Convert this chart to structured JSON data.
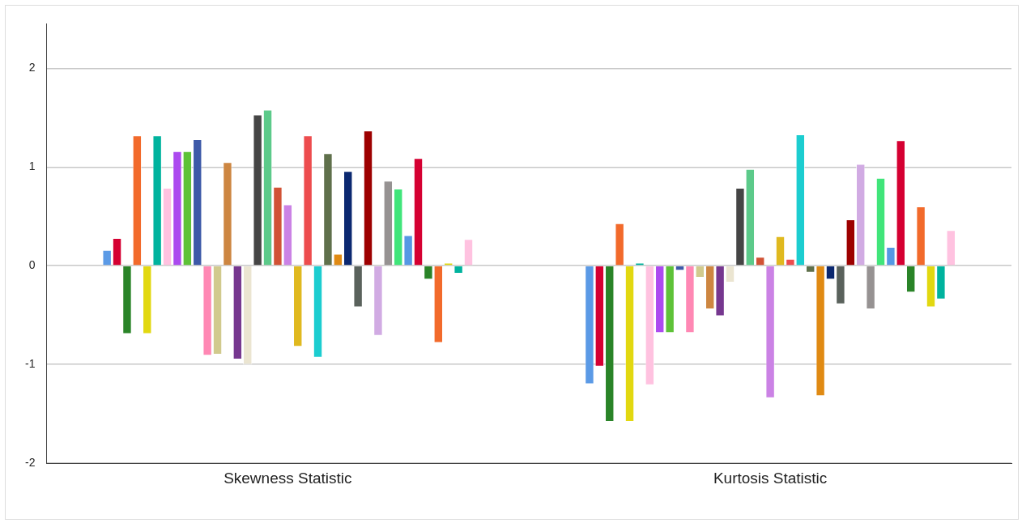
{
  "chart_data": {
    "type": "bar",
    "categories": [
      "Skewness Statistic",
      "Kurtosis Statistic"
    ],
    "ylim": [
      -2,
      2.45
    ],
    "yticks": [
      -2,
      -1,
      0,
      1,
      2
    ],
    "grid": "y",
    "legend": false,
    "series": [
      {
        "color": "#5b9ae6",
        "values": [
          0.16,
          -1.2
        ]
      },
      {
        "color": "#d50032",
        "values": [
          0.28,
          -1.02
        ]
      },
      {
        "color": "#2a8428",
        "values": [
          -0.69,
          -1.58
        ]
      },
      {
        "color": "#f26a2b",
        "values": [
          1.32,
          0.43
        ]
      },
      {
        "color": "#e2d810",
        "values": [
          -0.69,
          -1.58
        ]
      },
      {
        "color": "#00b39e",
        "values": [
          1.32,
          0.03
        ]
      },
      {
        "color": "#ffc2e0",
        "values": [
          0.79,
          -1.21
        ]
      },
      {
        "color": "#ac4aef",
        "values": [
          1.16,
          -0.68
        ]
      },
      {
        "color": "#5ec238",
        "values": [
          1.16,
          -0.68
        ]
      },
      {
        "color": "#3d59a8",
        "values": [
          1.28,
          -0.05
        ]
      },
      {
        "color": "#ff88b4",
        "values": [
          -0.91,
          -0.68
        ]
      },
      {
        "color": "#d1ca8d",
        "values": [
          -0.9,
          -0.12
        ]
      },
      {
        "color": "#cd8641",
        "values": [
          1.05,
          -0.44
        ]
      },
      {
        "color": "#76378f",
        "values": [
          -0.95,
          -0.51
        ]
      },
      {
        "color": "#ebe5d1",
        "values": [
          -1.0,
          -0.17
        ]
      },
      {
        "color": "#454545",
        "values": [
          1.53,
          0.79
        ]
      },
      {
        "color": "#5cca8a",
        "values": [
          1.58,
          0.98
        ]
      },
      {
        "color": "#d15235",
        "values": [
          0.8,
          0.09
        ]
      },
      {
        "color": "#cb82e5",
        "values": [
          0.62,
          -1.34
        ]
      },
      {
        "color": "#e0b91f",
        "values": [
          -0.82,
          0.3
        ]
      },
      {
        "color": "#ed4c4e",
        "values": [
          1.32,
          0.07
        ]
      },
      {
        "color": "#1ccdd0",
        "values": [
          -0.93,
          1.33
        ]
      },
      {
        "color": "#5f704b",
        "values": [
          1.14,
          -0.07
        ]
      },
      {
        "color": "#e08a13",
        "values": [
          0.12,
          -1.32
        ]
      },
      {
        "color": "#0b2870",
        "values": [
          0.96,
          -0.14
        ]
      },
      {
        "color": "#5a625c",
        "values": [
          -0.42,
          -0.39
        ]
      },
      {
        "color": "#9d0000",
        "values": [
          1.37,
          0.47
        ]
      },
      {
        "color": "#d1abe3",
        "values": [
          -0.71,
          1.03
        ]
      },
      {
        "color": "#969292",
        "values": [
          0.86,
          -0.44
        ]
      },
      {
        "color": "#40e57a",
        "values": [
          0.78,
          0.89
        ]
      },
      {
        "color": "#5598e4",
        "values": [
          0.31,
          0.19
        ]
      },
      {
        "color": "#d50032",
        "values": [
          1.09,
          1.27
        ]
      },
      {
        "color": "#2a8428",
        "values": [
          -0.14,
          -0.27
        ]
      },
      {
        "color": "#f26a2b",
        "values": [
          -0.78,
          0.6
        ]
      },
      {
        "color": "#e2d810",
        "values": [
          0.03,
          -0.42
        ]
      },
      {
        "color": "#00b39e",
        "values": [
          -0.08,
          -0.34
        ]
      },
      {
        "color": "#ffc2e0",
        "values": [
          0.27,
          0.36
        ]
      }
    ]
  }
}
